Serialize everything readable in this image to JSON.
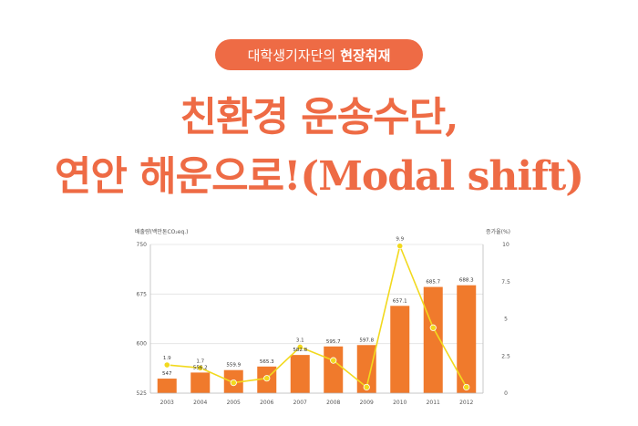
{
  "badge": {
    "prefix": "대학생기자단의",
    "highlight": "현장취재"
  },
  "title": {
    "line1": "친환경 운송수단,",
    "line2": "연안 해운으로!(Modal shift)"
  },
  "chart_data": {
    "type": "bar",
    "categories": [
      "2003",
      "2004",
      "2005",
      "2006",
      "2007",
      "2008",
      "2009",
      "2010",
      "2011",
      "2012"
    ],
    "series": [
      {
        "values": [
          547,
          556.2,
          559.9,
          565.3,
          582.8,
          595.7,
          597.8,
          657.1,
          685.7,
          688.3
        ],
        "type": "bar",
        "color": "#f07a2c"
      },
      {
        "values": [
          1.9,
          1.7,
          0.7,
          1.0,
          3.1,
          2.2,
          0.4,
          9.9,
          4.4,
          0.4
        ],
        "type": "line",
        "color": "#f2d91e",
        "axis": "right"
      }
    ],
    "bar_labels": [
      "547",
      "556.2",
      "559.9",
      "565.3",
      "582.8",
      "595.7",
      "597.8",
      "657.1",
      "685.7",
      "688.3"
    ],
    "line_labels": [
      "1.9",
      "1.7",
      "",
      "",
      "3.1",
      "",
      "",
      "9.9",
      "",
      ""
    ],
    "ylabel": "배출량(백만톤CO₂eq.)",
    "ylabel_right": "증가율(%)",
    "ylim": [
      525,
      750
    ],
    "yticks": [
      "750",
      "675",
      "600",
      "525"
    ],
    "ylim_right": [
      0,
      10
    ],
    "yticks_right": [
      "10",
      "7.5",
      "5",
      "2.5",
      "0"
    ],
    "grid": true
  }
}
